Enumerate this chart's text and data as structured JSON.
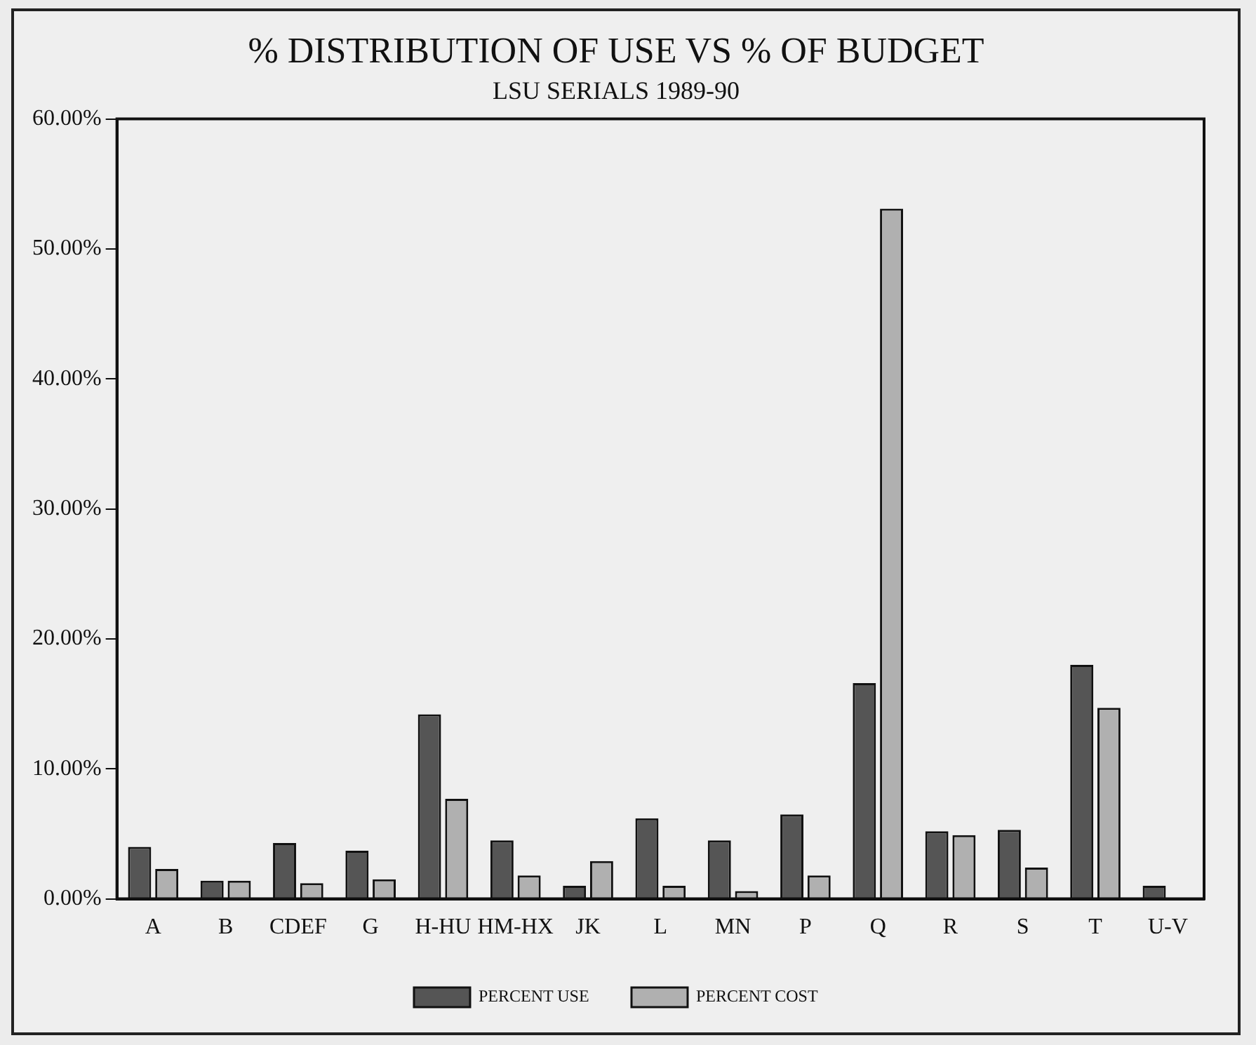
{
  "chart_data": {
    "type": "bar",
    "title": "% DISTRIBUTION OF USE VS % OF BUDGET",
    "subtitle": "LSU SERIALS 1989-90",
    "categories": [
      "A",
      "B",
      "CDEF",
      "G",
      "H-HU",
      "HM-HX",
      "JK",
      "L",
      "MN",
      "P",
      "Q",
      "R",
      "S",
      "T",
      "U-V"
    ],
    "series": [
      {
        "name": "PERCENT USE",
        "color": "#555555",
        "values": [
          4.0,
          1.4,
          4.3,
          3.7,
          14.2,
          4.5,
          1.0,
          6.2,
          4.5,
          6.5,
          16.6,
          5.2,
          5.3,
          18.0,
          1.0
        ]
      },
      {
        "name": "PERCENT COST",
        "color": "#b0b0b0",
        "values": [
          2.3,
          1.4,
          1.2,
          1.5,
          7.7,
          1.8,
          2.9,
          1.0,
          0.6,
          1.8,
          53.1,
          4.9,
          2.4,
          14.7,
          0
        ]
      }
    ],
    "ylim": [
      0,
      60
    ],
    "yticks": [
      {
        "value": 0,
        "label": "0.00%"
      },
      {
        "value": 10,
        "label": "10.00%"
      },
      {
        "value": 20,
        "label": "20.00%"
      },
      {
        "value": 30,
        "label": "30.00%"
      },
      {
        "value": 40,
        "label": "40.00%"
      },
      {
        "value": 50,
        "label": "50.00%"
      },
      {
        "value": 60,
        "label": "60.00%"
      }
    ],
    "grid": false,
    "legend": "bottom"
  }
}
